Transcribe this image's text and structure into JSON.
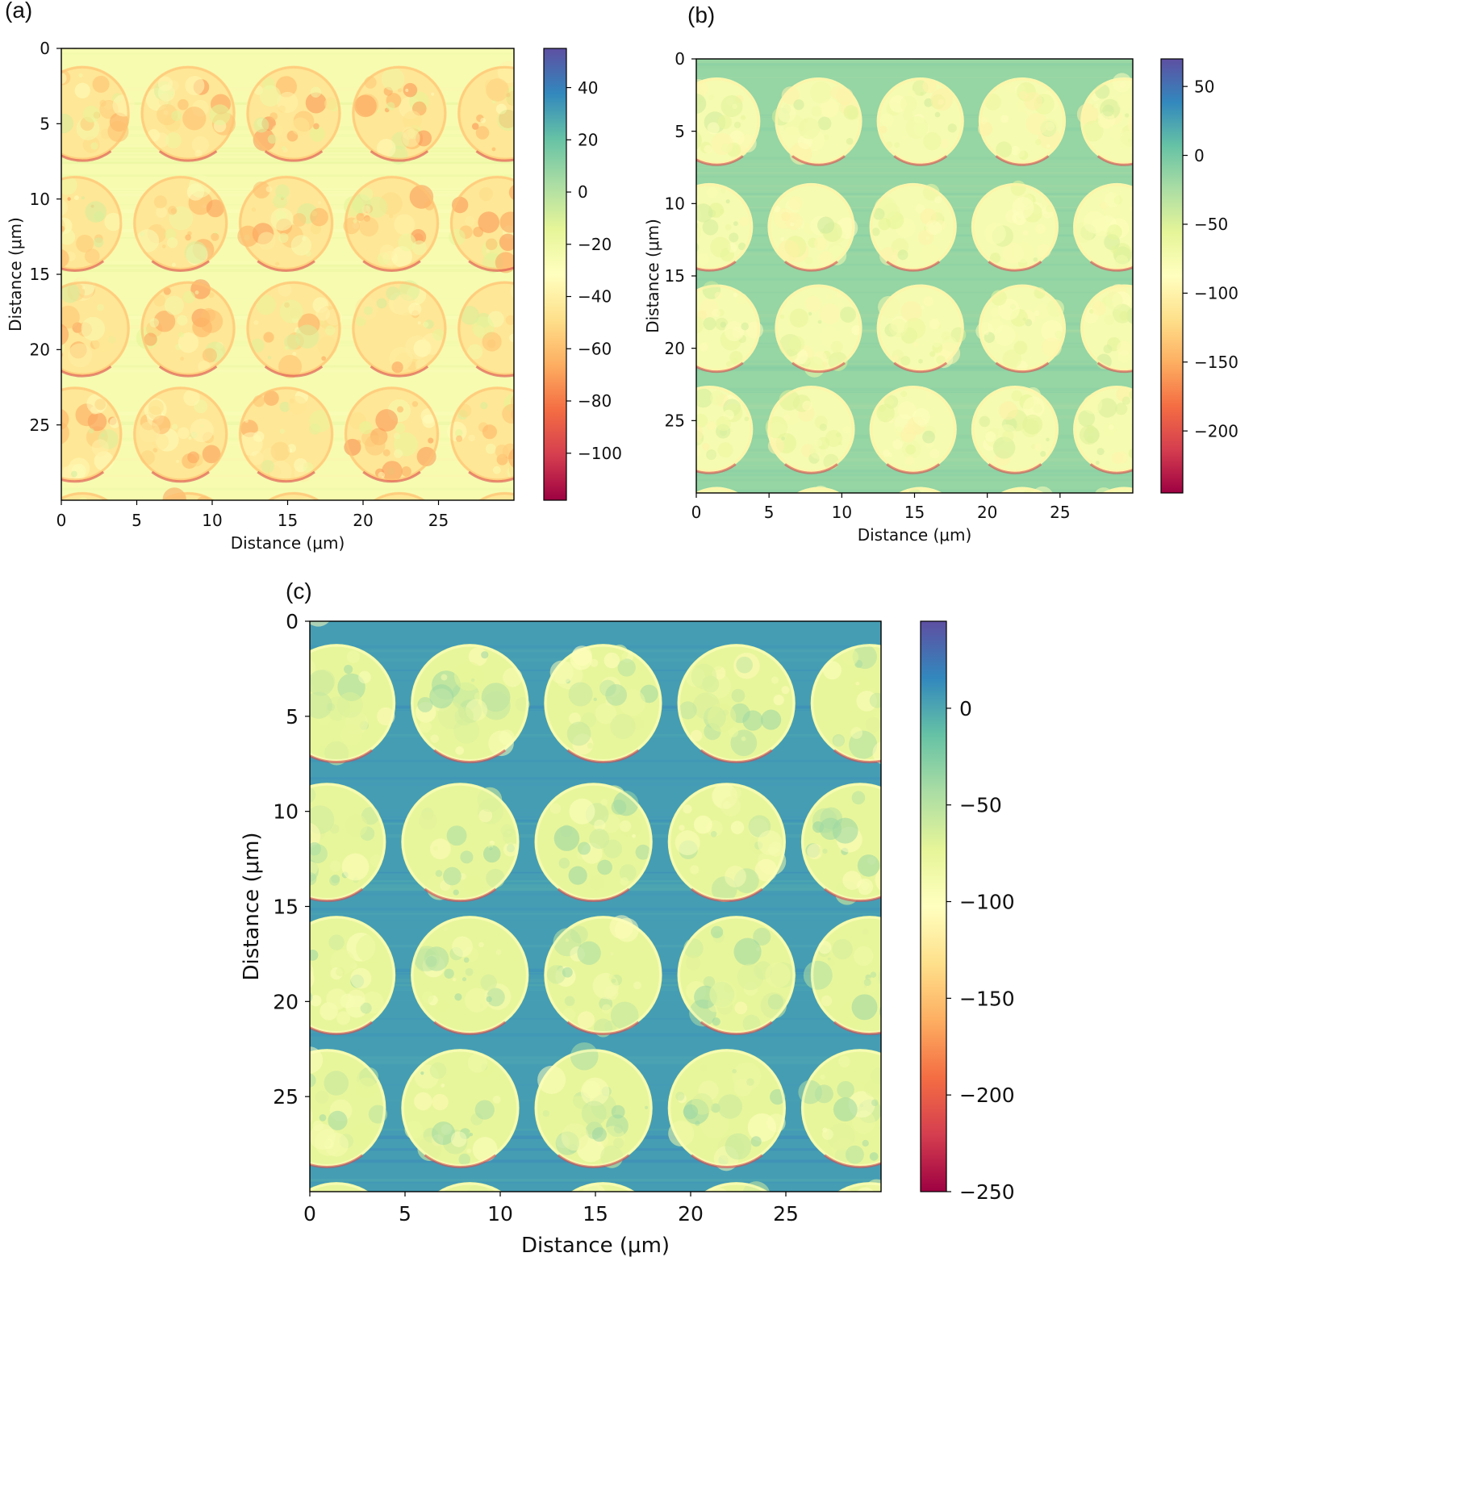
{
  "chart_data": [
    {
      "type": "heatmap",
      "panel_label": "(a)",
      "xlabel": "Distance (μm)",
      "ylabel": "Distance (μm)",
      "xlim": [
        0,
        30
      ],
      "ylim": [
        30,
        0
      ],
      "xticks": [
        0,
        5,
        10,
        15,
        20,
        25
      ],
      "yticks": [
        0,
        5,
        10,
        15,
        20,
        25
      ],
      "colorbar": {
        "range": [
          -118,
          55
        ],
        "ticks": [
          40,
          20,
          0,
          -20,
          -40,
          -60,
          -80,
          -100
        ],
        "colormap": "Spectral"
      },
      "description_values": {
        "background_level": -25,
        "disc_mean_level": -45
      },
      "grid": "disc array, 5 columns x 5 rows, pitch ~7 μm, diameter ~6.3 μm"
    },
    {
      "type": "heatmap",
      "panel_label": "(b)",
      "xlabel": "Distance (μm)",
      "ylabel": "Distance (μm)",
      "xlim": [
        0,
        30
      ],
      "ylim": [
        30,
        0
      ],
      "xticks": [
        0,
        5,
        10,
        15,
        20,
        25
      ],
      "yticks": [
        0,
        5,
        10,
        15,
        20,
        25
      ],
      "colorbar": {
        "range": [
          -245,
          70
        ],
        "ticks": [
          50,
          0,
          -50,
          -100,
          -150,
          -200
        ],
        "colormap": "Spectral"
      },
      "description_values": {
        "background_level": -15,
        "disc_mean_level": -75
      },
      "grid": "disc array, 5 columns x 5 rows, pitch ~7 μm, diameter ~6 μm"
    },
    {
      "type": "heatmap",
      "panel_label": "(c)",
      "xlabel": "Distance (μm)",
      "ylabel": "Distance (μm)",
      "xlim": [
        0,
        30
      ],
      "ylim": [
        30,
        0
      ],
      "xticks": [
        0,
        5,
        10,
        15,
        20,
        25
      ],
      "yticks": [
        0,
        5,
        10,
        15,
        20,
        25
      ],
      "colorbar": {
        "range": [
          -250,
          45
        ],
        "ticks": [
          0,
          -50,
          -100,
          -150,
          -200,
          -250
        ],
        "colormap": "Spectral"
      },
      "description_values": {
        "background_level": 5,
        "disc_mean_level": -75
      },
      "grid": "disc array, 5 columns x 5 rows, pitch ~7 μm, diameter ~6.2 μm"
    }
  ],
  "colors": {
    "spectral_stops": [
      "#9e0142",
      "#d53e4f",
      "#f46d43",
      "#fdae61",
      "#fee08b",
      "#ffffbf",
      "#e6f598",
      "#abdda4",
      "#66c2a5",
      "#3288bd",
      "#5e4fa2"
    ]
  }
}
